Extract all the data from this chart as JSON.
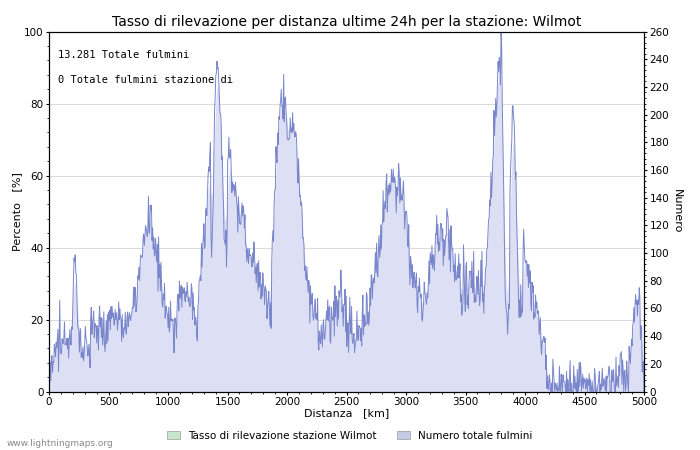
{
  "title": "Tasso di rilevazione per distanza ultime 24h per la stazione: Wilmot",
  "xlabel": "Distanza   [km]",
  "ylabel_left": "Percento   [%]",
  "ylabel_right": "Numero",
  "annotation_line1": "13.281 Totale fulmini",
  "annotation_line2": "0 Totale fulmini stazione di",
  "legend_label1": "Tasso di rilevazione stazione Wilmot",
  "legend_label2": "Numero totale fulmini",
  "legend_color1": "#c8e6c9",
  "legend_color2": "#c5cae9",
  "line_color": "#7986cb",
  "fill_color": "#dde0f5",
  "green_fill_color": "#c8e6c9",
  "background_color": "#ffffff",
  "xlim": [
    0,
    5000
  ],
  "ylim_left": [
    0,
    100
  ],
  "ylim_right": [
    0,
    260
  ],
  "xticks": [
    0,
    500,
    1000,
    1500,
    2000,
    2500,
    3000,
    3500,
    4000,
    4500,
    5000
  ],
  "yticks_left": [
    0,
    20,
    40,
    60,
    80,
    100
  ],
  "yticks_right": [
    0,
    20,
    40,
    60,
    80,
    100,
    120,
    140,
    160,
    180,
    200,
    220,
    240,
    260
  ],
  "watermark": "www.lightningmaps.org",
  "title_fontsize": 10,
  "axis_fontsize": 8,
  "tick_fontsize": 7.5
}
